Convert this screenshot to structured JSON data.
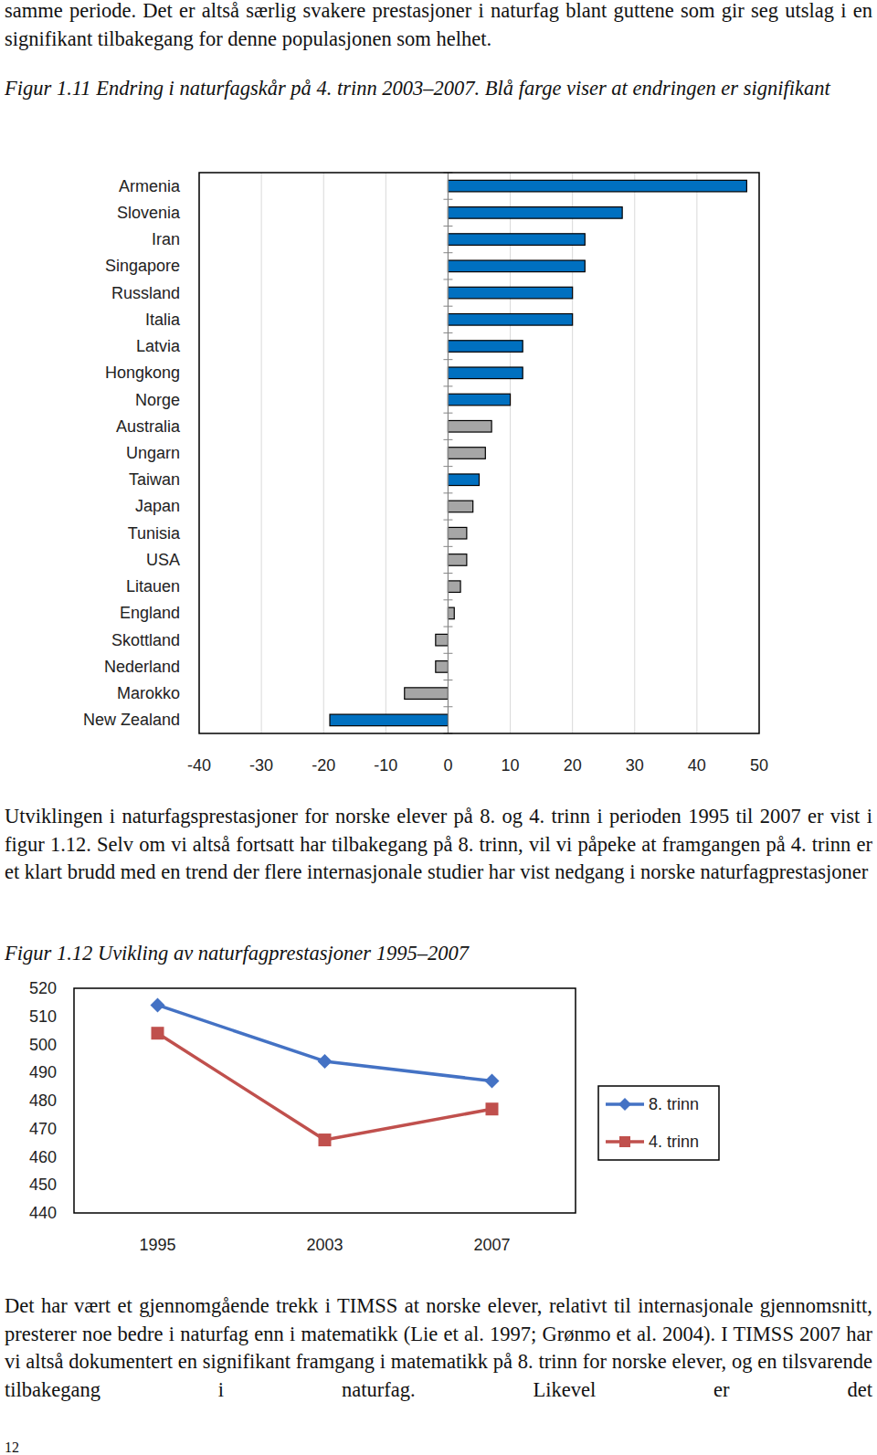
{
  "paragraphs": [
    "samme periode. Det er altså særlig svakere prestasjoner i naturfag blant guttene som gir seg utslag i en signifikant tilbakegang for denne populasjonen som helhet.",
    "Utviklingen i naturfagsprestasjoner for norske elever på 8. og 4. trinn i perioden 1995 til 2007 er vist i figur 1.12. Selv om vi altså fortsatt har tilbakegang på 8. trinn, vil vi påpeke at framgangen på 4. trinn er et klart brudd med en trend der flere internasjonale studier har vist nedgang i norske naturfagprestasjoner",
    "Det har vært et gjennomgående trekk i TIMSS at norske elever, relativt til internasjonale gjennomsnitt, presterer noe bedre i naturfag enn i matematikk (Lie et al. 1997; Grønmo et al. 2004). I TIMSS 2007 har vi altså dokumentert en signifikant framgang i matematikk på 8. trinn for norske elever, og en tilsvarende tilbakegang i naturfag. Likevel er det"
  ],
  "page_number": "12",
  "chart_data": [
    {
      "type": "bar",
      "title": "Figur 1.11 Endring i naturfagskår på 4. trinn 2003–2007. Blå farge viser at endringen er signifikant",
      "orientation": "horizontal",
      "categories": [
        "Armenia",
        "Slovenia",
        "Iran",
        "Singapore",
        "Russland",
        "Italia",
        "Latvia",
        "Hongkong",
        "Norge",
        "Australia",
        "Ungarn",
        "Taiwan",
        "Japan",
        "Tunisia",
        "USA",
        "Litauen",
        "England",
        "Skottland",
        "Nederland",
        "Marokko",
        "New Zealand"
      ],
      "values": [
        48,
        28,
        22,
        22,
        20,
        20,
        12,
        12,
        10,
        7,
        6,
        5,
        4,
        3,
        3,
        2,
        1,
        -2,
        -2,
        -7,
        -19
      ],
      "colors": [
        "#0070c0",
        "#0070c0",
        "#0070c0",
        "#0070c0",
        "#0070c0",
        "#0070c0",
        "#0070c0",
        "#0070c0",
        "#0070c0",
        "#a6a6a6",
        "#a6a6a6",
        "#0070c0",
        "#a6a6a6",
        "#a6a6a6",
        "#a6a6a6",
        "#a6a6a6",
        "#a6a6a6",
        "#a6a6a6",
        "#a6a6a6",
        "#a6a6a6",
        "#0070c0"
      ],
      "xlim": [
        -40,
        50
      ],
      "xticks": [
        -40,
        -30,
        -20,
        -10,
        0,
        10,
        20,
        30,
        40,
        50
      ],
      "grid": true
    },
    {
      "type": "line",
      "title": "Figur 1.12 Uvikling av naturfagprestasjoner 1995–2007",
      "categories": [
        "1995",
        "2003",
        "2007"
      ],
      "series": [
        {
          "name": "8. trinn",
          "color": "#4472c4",
          "marker": "diamond",
          "values": [
            514,
            494,
            487
          ]
        },
        {
          "name": "4. trinn",
          "color": "#c0504d",
          "marker": "square",
          "values": [
            504,
            466,
            477
          ]
        }
      ],
      "ylim": [
        440,
        520
      ],
      "yticks": [
        440,
        450,
        460,
        470,
        480,
        490,
        500,
        510,
        520
      ],
      "legend": "right",
      "grid": false
    }
  ]
}
